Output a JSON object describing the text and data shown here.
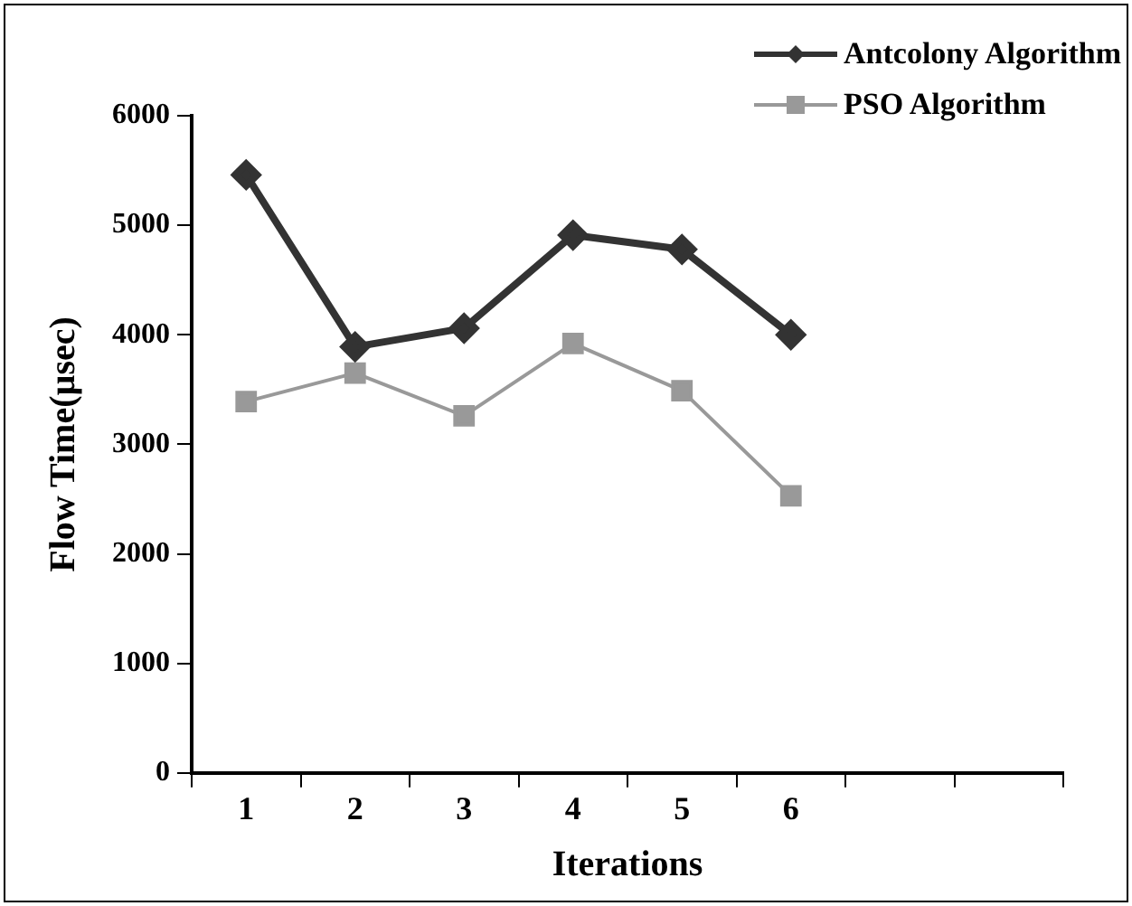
{
  "chart_data": {
    "type": "line",
    "xlabel": "Iterations",
    "ylabel": "Flow Time(µsec)",
    "categories": [
      "1",
      "2",
      "3",
      "4",
      "5",
      "6",
      null,
      null
    ],
    "series": [
      {
        "name": "Antcolony Algorithm",
        "color": "#333333",
        "marker": "diamond",
        "values": [
          5460,
          3890,
          4060,
          4910,
          4780,
          4000,
          null,
          null
        ]
      },
      {
        "name": "PSO Algorithm",
        "color": "#999999",
        "marker": "square",
        "values": [
          3390,
          3650,
          3260,
          3920,
          3490,
          2530,
          null,
          null
        ]
      }
    ],
    "ylim": [
      0,
      6000
    ],
    "yticks": [
      0,
      1000,
      2000,
      3000,
      4000,
      5000,
      6000
    ],
    "grid": false,
    "legend": "top right",
    "line_style": "solid"
  }
}
